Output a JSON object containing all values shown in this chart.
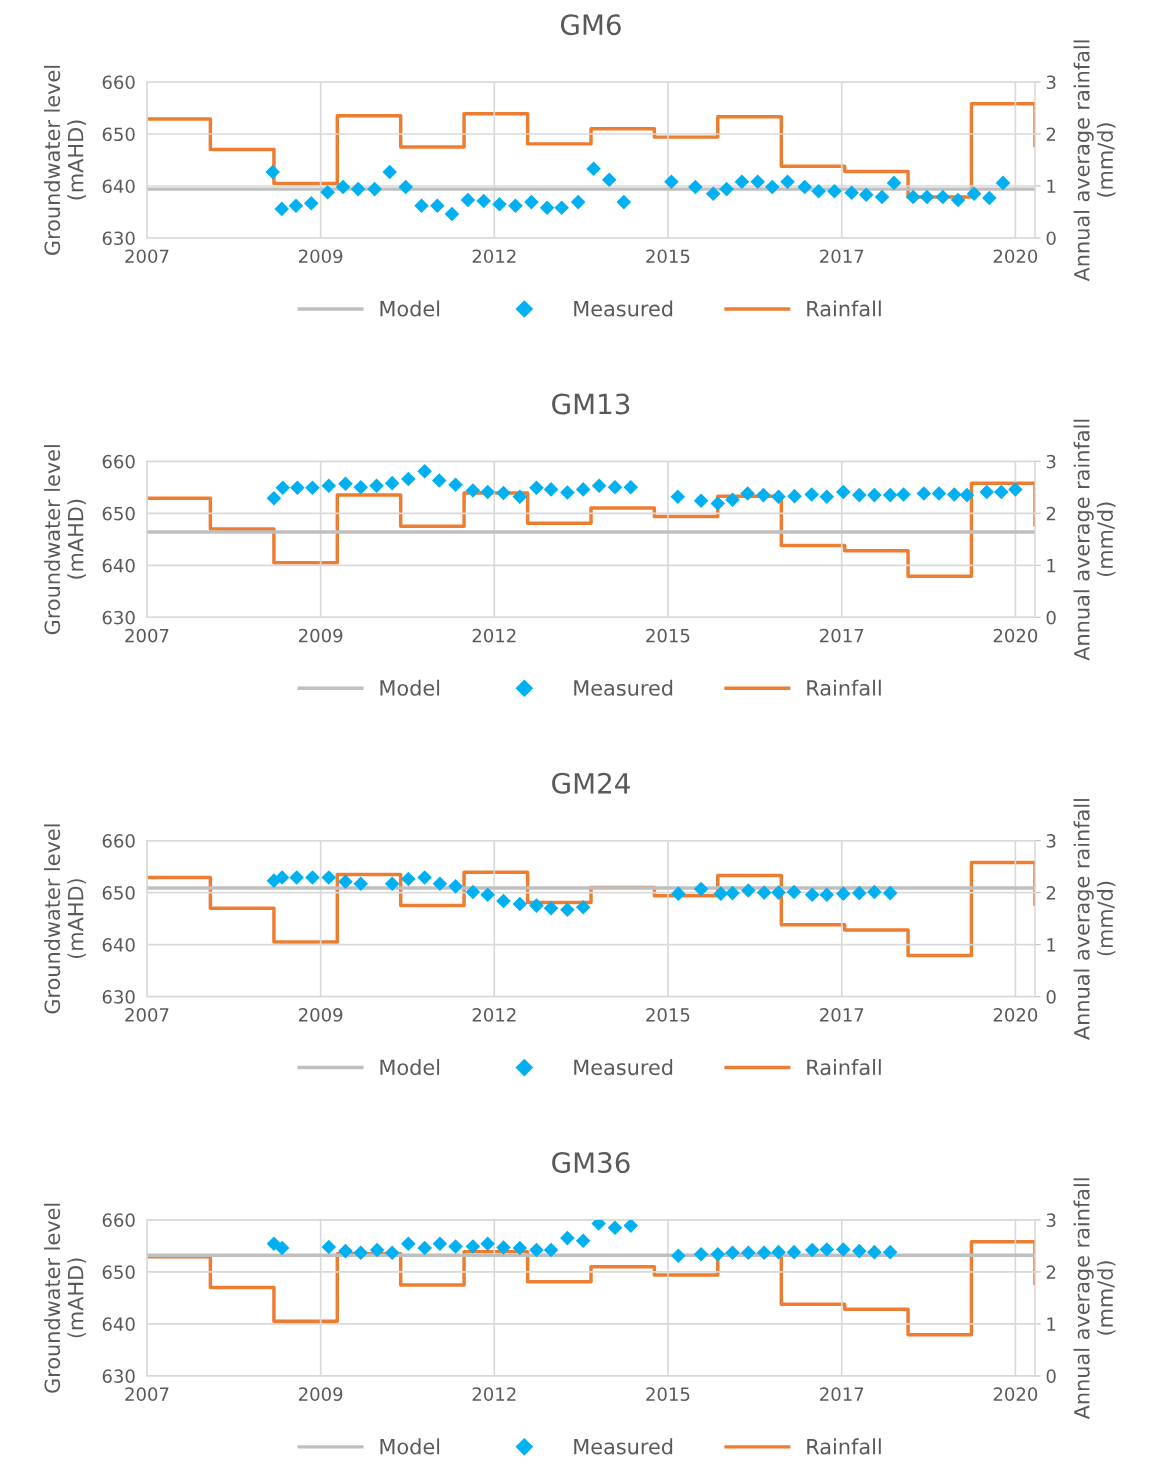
{
  "chart_data": [
    {
      "type": "line",
      "title": "GM6",
      "ylabel": "Groundwater level\n(mAHD)",
      "y2label": "Annual average rainfall\n(mm/d)",
      "xlim": [
        "2007-01-01",
        "2021-01-01"
      ],
      "xticks": [
        {
          "value": "2007-01-01",
          "label": "2007"
        },
        {
          "value": "2009-09-27",
          "label": "2009"
        },
        {
          "value": "2012-06-23",
          "label": "2012"
        },
        {
          "value": "2015-03-20",
          "label": "2015"
        },
        {
          "value": "2017-12-15",
          "label": "2017"
        },
        {
          "value": "2020-09-10",
          "label": "2020"
        }
      ],
      "ylim": [
        630,
        660
      ],
      "yticks": [
        630,
        640,
        650,
        660
      ],
      "y2lim": [
        0,
        3
      ],
      "y2ticks": [
        0,
        1,
        2,
        3
      ],
      "grid": true,
      "legend": "bottom",
      "series": [
        {
          "name": "Model",
          "color": "#bfbfbf",
          "marker": "none",
          "line_style": "solid",
          "x": [
            "2007-01-01",
            "2021-01-01"
          ],
          "values": [
            639.4,
            639.4
          ]
        },
        {
          "name": "Measured",
          "type": "scatter",
          "color": "#00b0f0",
          "marker": "diamond",
          "x": [
            "2008-12-25",
            "2009-02-15",
            "2009-05-08",
            "2009-08-04",
            "2009-11-06",
            "2010-02-03",
            "2010-05-01",
            "2010-08-04",
            "2010-10-30",
            "2011-01-30",
            "2011-05-01",
            "2011-07-31",
            "2011-10-23",
            "2012-01-23",
            "2012-04-23",
            "2012-07-23",
            "2012-10-23",
            "2013-01-23",
            "2013-04-23",
            "2013-07-16",
            "2013-10-19",
            "2014-01-16",
            "2014-04-16",
            "2014-07-09",
            "2015-04-09",
            "2015-08-25",
            "2015-12-06",
            "2016-02-21",
            "2016-05-19",
            "2016-08-18",
            "2016-11-10",
            "2017-02-06",
            "2017-05-16",
            "2017-08-04",
            "2017-11-03",
            "2018-02-10",
            "2018-05-05",
            "2018-08-04",
            "2018-10-12",
            "2019-01-30",
            "2019-04-20",
            "2019-07-20",
            "2019-10-16",
            "2020-01-16",
            "2020-04-13",
            "2020-07-01"
          ],
          "values": [
            642.7,
            635.6,
            636.2,
            636.7,
            638.8,
            639.8,
            639.4,
            639.4,
            642.7,
            639.8,
            636.2,
            636.2,
            634.6,
            637.3,
            637.1,
            636.5,
            636.2,
            636.9,
            635.8,
            635.8,
            636.9,
            643.3,
            641.2,
            636.9,
            640.8,
            639.8,
            638.5,
            639.4,
            640.8,
            640.8,
            639.8,
            640.8,
            639.8,
            639.0,
            639.0,
            638.7,
            638.3,
            637.9,
            640.6,
            637.9,
            637.9,
            637.9,
            637.3,
            638.5,
            637.7,
            640.6
          ]
        },
        {
          "name": "Rainfall",
          "type": "step",
          "axis": "y2",
          "color": "#ed7d31",
          "marker": "none",
          "line_style": "solid",
          "x": [
            "2007-01-01",
            "2008-01-01",
            "2009-01-01",
            "2010-01-01",
            "2011-01-01",
            "2012-01-01",
            "2013-01-01",
            "2014-01-01",
            "2015-01-01",
            "2016-01-01",
            "2017-01-01",
            "2018-01-01",
            "2019-01-01",
            "2020-01-01",
            "2021-01-01"
          ],
          "values": [
            2.29,
            1.7,
            1.05,
            2.35,
            1.75,
            2.39,
            1.81,
            2.1,
            1.94,
            2.33,
            1.38,
            1.28,
            0.79,
            2.58,
            1.78
          ]
        }
      ]
    },
    {
      "type": "line",
      "title": "GM13",
      "ylabel": "Groundwater level\n(mAHD)",
      "y2label": "Annual average rainfall\n(mm/d)",
      "xlim": [
        "2007-01-01",
        "2021-01-01"
      ],
      "xticks": [
        {
          "value": "2007-01-01",
          "label": "2007"
        },
        {
          "value": "2009-09-27",
          "label": "2009"
        },
        {
          "value": "2012-06-23",
          "label": "2012"
        },
        {
          "value": "2015-03-20",
          "label": "2015"
        },
        {
          "value": "2017-12-15",
          "label": "2017"
        },
        {
          "value": "2020-09-10",
          "label": "2020"
        }
      ],
      "ylim": [
        630,
        660
      ],
      "yticks": [
        630,
        640,
        650,
        660
      ],
      "y2lim": [
        0,
        3
      ],
      "y2ticks": [
        0,
        1,
        2,
        3
      ],
      "grid": true,
      "legend": "bottom",
      "series": [
        {
          "name": "Model",
          "color": "#bfbfbf",
          "marker": "none",
          "line_style": "solid",
          "x": [
            "2007-01-01",
            "2021-01-01"
          ],
          "values": [
            646.4,
            646.4
          ]
        },
        {
          "name": "Measured",
          "type": "scatter",
          "color": "#00b0f0",
          "marker": "diamond",
          "x": [
            "2009-01-01",
            "2009-02-21",
            "2009-05-16",
            "2009-08-11",
            "2009-11-13",
            "2010-02-17",
            "2010-05-16",
            "2010-08-15",
            "2010-11-13",
            "2011-02-14",
            "2011-05-19",
            "2011-08-11",
            "2011-11-13",
            "2012-02-21",
            "2012-05-16",
            "2012-08-15",
            "2012-11-17",
            "2013-02-21",
            "2013-05-16",
            "2013-08-18",
            "2013-11-17",
            "2014-02-17",
            "2014-05-19",
            "2014-08-18",
            "2015-05-16",
            "2015-09-27",
            "2016-01-01",
            "2016-03-26",
            "2016-06-21",
            "2016-09-20",
            "2016-12-16",
            "2017-03-18",
            "2017-06-25",
            "2017-09-20",
            "2017-12-24",
            "2018-03-26",
            "2018-06-21",
            "2018-09-20",
            "2018-12-06",
            "2019-04-02",
            "2019-06-28",
            "2019-09-24",
            "2019-12-06",
            "2020-03-29",
            "2020-06-21",
            "2020-09-10"
          ],
          "values": [
            652.9,
            654.9,
            654.9,
            654.9,
            655.3,
            655.7,
            655.0,
            655.3,
            655.8,
            656.6,
            658.1,
            656.3,
            655.5,
            654.4,
            654.1,
            653.9,
            653.2,
            654.9,
            654.6,
            654.0,
            654.6,
            655.3,
            655.0,
            655.0,
            653.2,
            652.4,
            651.9,
            652.6,
            653.8,
            653.5,
            653.2,
            653.3,
            653.6,
            653.2,
            654.1,
            653.5,
            653.5,
            653.5,
            653.6,
            653.8,
            653.8,
            653.6,
            653.5,
            654.1,
            654.1,
            654.6
          ]
        },
        {
          "name": "Rainfall",
          "type": "step",
          "axis": "y2",
          "color": "#ed7d31",
          "marker": "none",
          "line_style": "solid",
          "x": [
            "2007-01-01",
            "2008-01-01",
            "2009-01-01",
            "2010-01-01",
            "2011-01-01",
            "2012-01-01",
            "2013-01-01",
            "2014-01-01",
            "2015-01-01",
            "2016-01-01",
            "2017-01-01",
            "2018-01-01",
            "2019-01-01",
            "2020-01-01",
            "2021-01-01"
          ],
          "values": [
            2.29,
            1.7,
            1.05,
            2.35,
            1.75,
            2.39,
            1.81,
            2.1,
            1.94,
            2.33,
            1.38,
            1.28,
            0.79,
            2.58,
            1.78
          ]
        }
      ]
    },
    {
      "type": "line",
      "title": "GM24",
      "ylabel": "Groundwater level\n(mAHD)",
      "y2label": "Annual average rainfall\n(mm/d)",
      "xlim": [
        "2007-01-01",
        "2021-01-01"
      ],
      "xticks": [
        {
          "value": "2007-01-01",
          "label": "2007"
        },
        {
          "value": "2009-09-27",
          "label": "2009"
        },
        {
          "value": "2012-06-23",
          "label": "2012"
        },
        {
          "value": "2015-03-20",
          "label": "2015"
        },
        {
          "value": "2017-12-15",
          "label": "2017"
        },
        {
          "value": "2020-09-10",
          "label": "2020"
        }
      ],
      "ylim": [
        630,
        660
      ],
      "yticks": [
        630,
        640,
        650,
        660
      ],
      "y2lim": [
        0,
        3
      ],
      "y2ticks": [
        0,
        1,
        2,
        3
      ],
      "grid": true,
      "legend": "bottom",
      "series": [
        {
          "name": "Model",
          "color": "#bfbfbf",
          "marker": "none",
          "line_style": "solid",
          "x": [
            "2007-01-01",
            "2021-01-01"
          ],
          "values": [
            650.9,
            650.9
          ]
        },
        {
          "name": "Measured",
          "type": "scatter",
          "color": "#00b0f0",
          "marker": "diamond",
          "x": [
            "2009-01-01",
            "2009-02-17",
            "2009-05-12",
            "2009-08-11",
            "2009-11-13",
            "2010-02-17",
            "2010-05-16",
            "2010-11-13",
            "2011-02-14",
            "2011-05-19",
            "2011-08-15",
            "2011-11-13",
            "2012-02-21",
            "2012-05-16",
            "2012-08-15",
            "2012-11-17",
            "2013-02-21",
            "2013-05-16",
            "2013-08-18",
            "2013-11-17",
            "2015-05-19",
            "2015-09-27",
            "2016-01-19",
            "2016-03-26",
            "2016-06-25",
            "2016-09-24",
            "2016-12-16",
            "2017-03-15",
            "2017-06-28",
            "2017-09-20",
            "2017-12-24",
            "2018-03-26",
            "2018-06-21",
            "2018-09-20"
          ],
          "values": [
            652.3,
            652.9,
            652.9,
            652.9,
            652.9,
            652.1,
            651.7,
            651.7,
            652.6,
            652.9,
            651.7,
            651.2,
            650.1,
            649.6,
            648.4,
            647.8,
            647.5,
            647.0,
            646.7,
            647.2,
            649.8,
            650.7,
            649.8,
            649.9,
            650.4,
            650.0,
            650.0,
            650.1,
            649.6,
            649.6,
            649.8,
            649.9,
            650.1,
            649.9
          ]
        },
        {
          "name": "Rainfall",
          "type": "step",
          "axis": "y2",
          "color": "#ed7d31",
          "marker": "none",
          "line_style": "solid",
          "x": [
            "2007-01-01",
            "2008-01-01",
            "2009-01-01",
            "2010-01-01",
            "2011-01-01",
            "2012-01-01",
            "2013-01-01",
            "2014-01-01",
            "2015-01-01",
            "2016-01-01",
            "2017-01-01",
            "2018-01-01",
            "2019-01-01",
            "2020-01-01",
            "2021-01-01"
          ],
          "values": [
            2.29,
            1.7,
            1.05,
            2.35,
            1.75,
            2.39,
            1.81,
            2.1,
            1.94,
            2.33,
            1.38,
            1.28,
            0.79,
            2.58,
            1.78
          ]
        }
      ]
    },
    {
      "type": "line",
      "title": "GM36",
      "ylabel": "Groundwater level\n(mAHD)",
      "y2label": "Annual average rainfall\n(mm/d)",
      "xlim": [
        "2007-01-01",
        "2021-01-01"
      ],
      "xticks": [
        {
          "value": "2007-01-01",
          "label": "2007"
        },
        {
          "value": "2009-09-27",
          "label": "2009"
        },
        {
          "value": "2012-06-23",
          "label": "2012"
        },
        {
          "value": "2015-03-20",
          "label": "2015"
        },
        {
          "value": "2017-12-15",
          "label": "2017"
        },
        {
          "value": "2020-09-10",
          "label": "2020"
        }
      ],
      "ylim": [
        630,
        660
      ],
      "yticks": [
        630,
        640,
        650,
        660
      ],
      "y2lim": [
        0,
        3
      ],
      "y2ticks": [
        0,
        1,
        2,
        3
      ],
      "grid": true,
      "legend": "bottom",
      "series": [
        {
          "name": "Model",
          "color": "#bfbfbf",
          "marker": "none",
          "line_style": "solid",
          "x": [
            "2007-01-01",
            "2021-01-01"
          ],
          "values": [
            653.2,
            653.2
          ]
        },
        {
          "name": "Measured",
          "type": "scatter",
          "color": "#00b0f0",
          "marker": "diamond",
          "x": [
            "2009-01-01",
            "2009-02-17",
            "2009-11-13",
            "2010-02-17",
            "2010-05-16",
            "2010-08-18",
            "2010-11-13",
            "2011-02-14",
            "2011-05-19",
            "2011-08-15",
            "2011-11-13",
            "2012-02-21",
            "2012-05-16",
            "2012-08-15",
            "2012-11-17",
            "2013-02-21",
            "2013-05-16",
            "2013-08-18",
            "2013-11-17",
            "2014-02-14",
            "2014-05-19",
            "2014-08-18",
            "2015-05-19",
            "2015-09-27",
            "2016-01-01",
            "2016-03-26",
            "2016-06-25",
            "2016-09-24",
            "2016-12-16",
            "2017-03-15",
            "2017-06-28",
            "2017-09-20",
            "2017-12-24",
            "2018-03-26",
            "2018-06-21",
            "2018-09-20"
          ],
          "values": [
            655.4,
            654.6,
            654.8,
            654.0,
            653.7,
            654.2,
            653.7,
            655.4,
            654.6,
            655.4,
            654.9,
            654.9,
            655.4,
            654.7,
            654.6,
            654.2,
            654.2,
            656.5,
            656.0,
            659.3,
            658.5,
            658.9,
            653.1,
            653.4,
            653.4,
            653.7,
            653.7,
            653.7,
            653.8,
            653.8,
            654.2,
            654.3,
            654.3,
            654.0,
            653.8,
            653.8
          ]
        },
        {
          "name": "Rainfall",
          "type": "step",
          "axis": "y2",
          "color": "#ed7d31",
          "marker": "none",
          "line_style": "solid",
          "x": [
            "2007-01-01",
            "2008-01-01",
            "2009-01-01",
            "2010-01-01",
            "2011-01-01",
            "2012-01-01",
            "2013-01-01",
            "2014-01-01",
            "2015-01-01",
            "2016-01-01",
            "2017-01-01",
            "2018-01-01",
            "2019-01-01",
            "2020-01-01",
            "2021-01-01"
          ],
          "values": [
            2.29,
            1.7,
            1.05,
            2.35,
            1.75,
            2.39,
            1.81,
            2.1,
            1.94,
            2.33,
            1.38,
            1.28,
            0.79,
            2.58,
            1.78
          ]
        }
      ]
    }
  ]
}
